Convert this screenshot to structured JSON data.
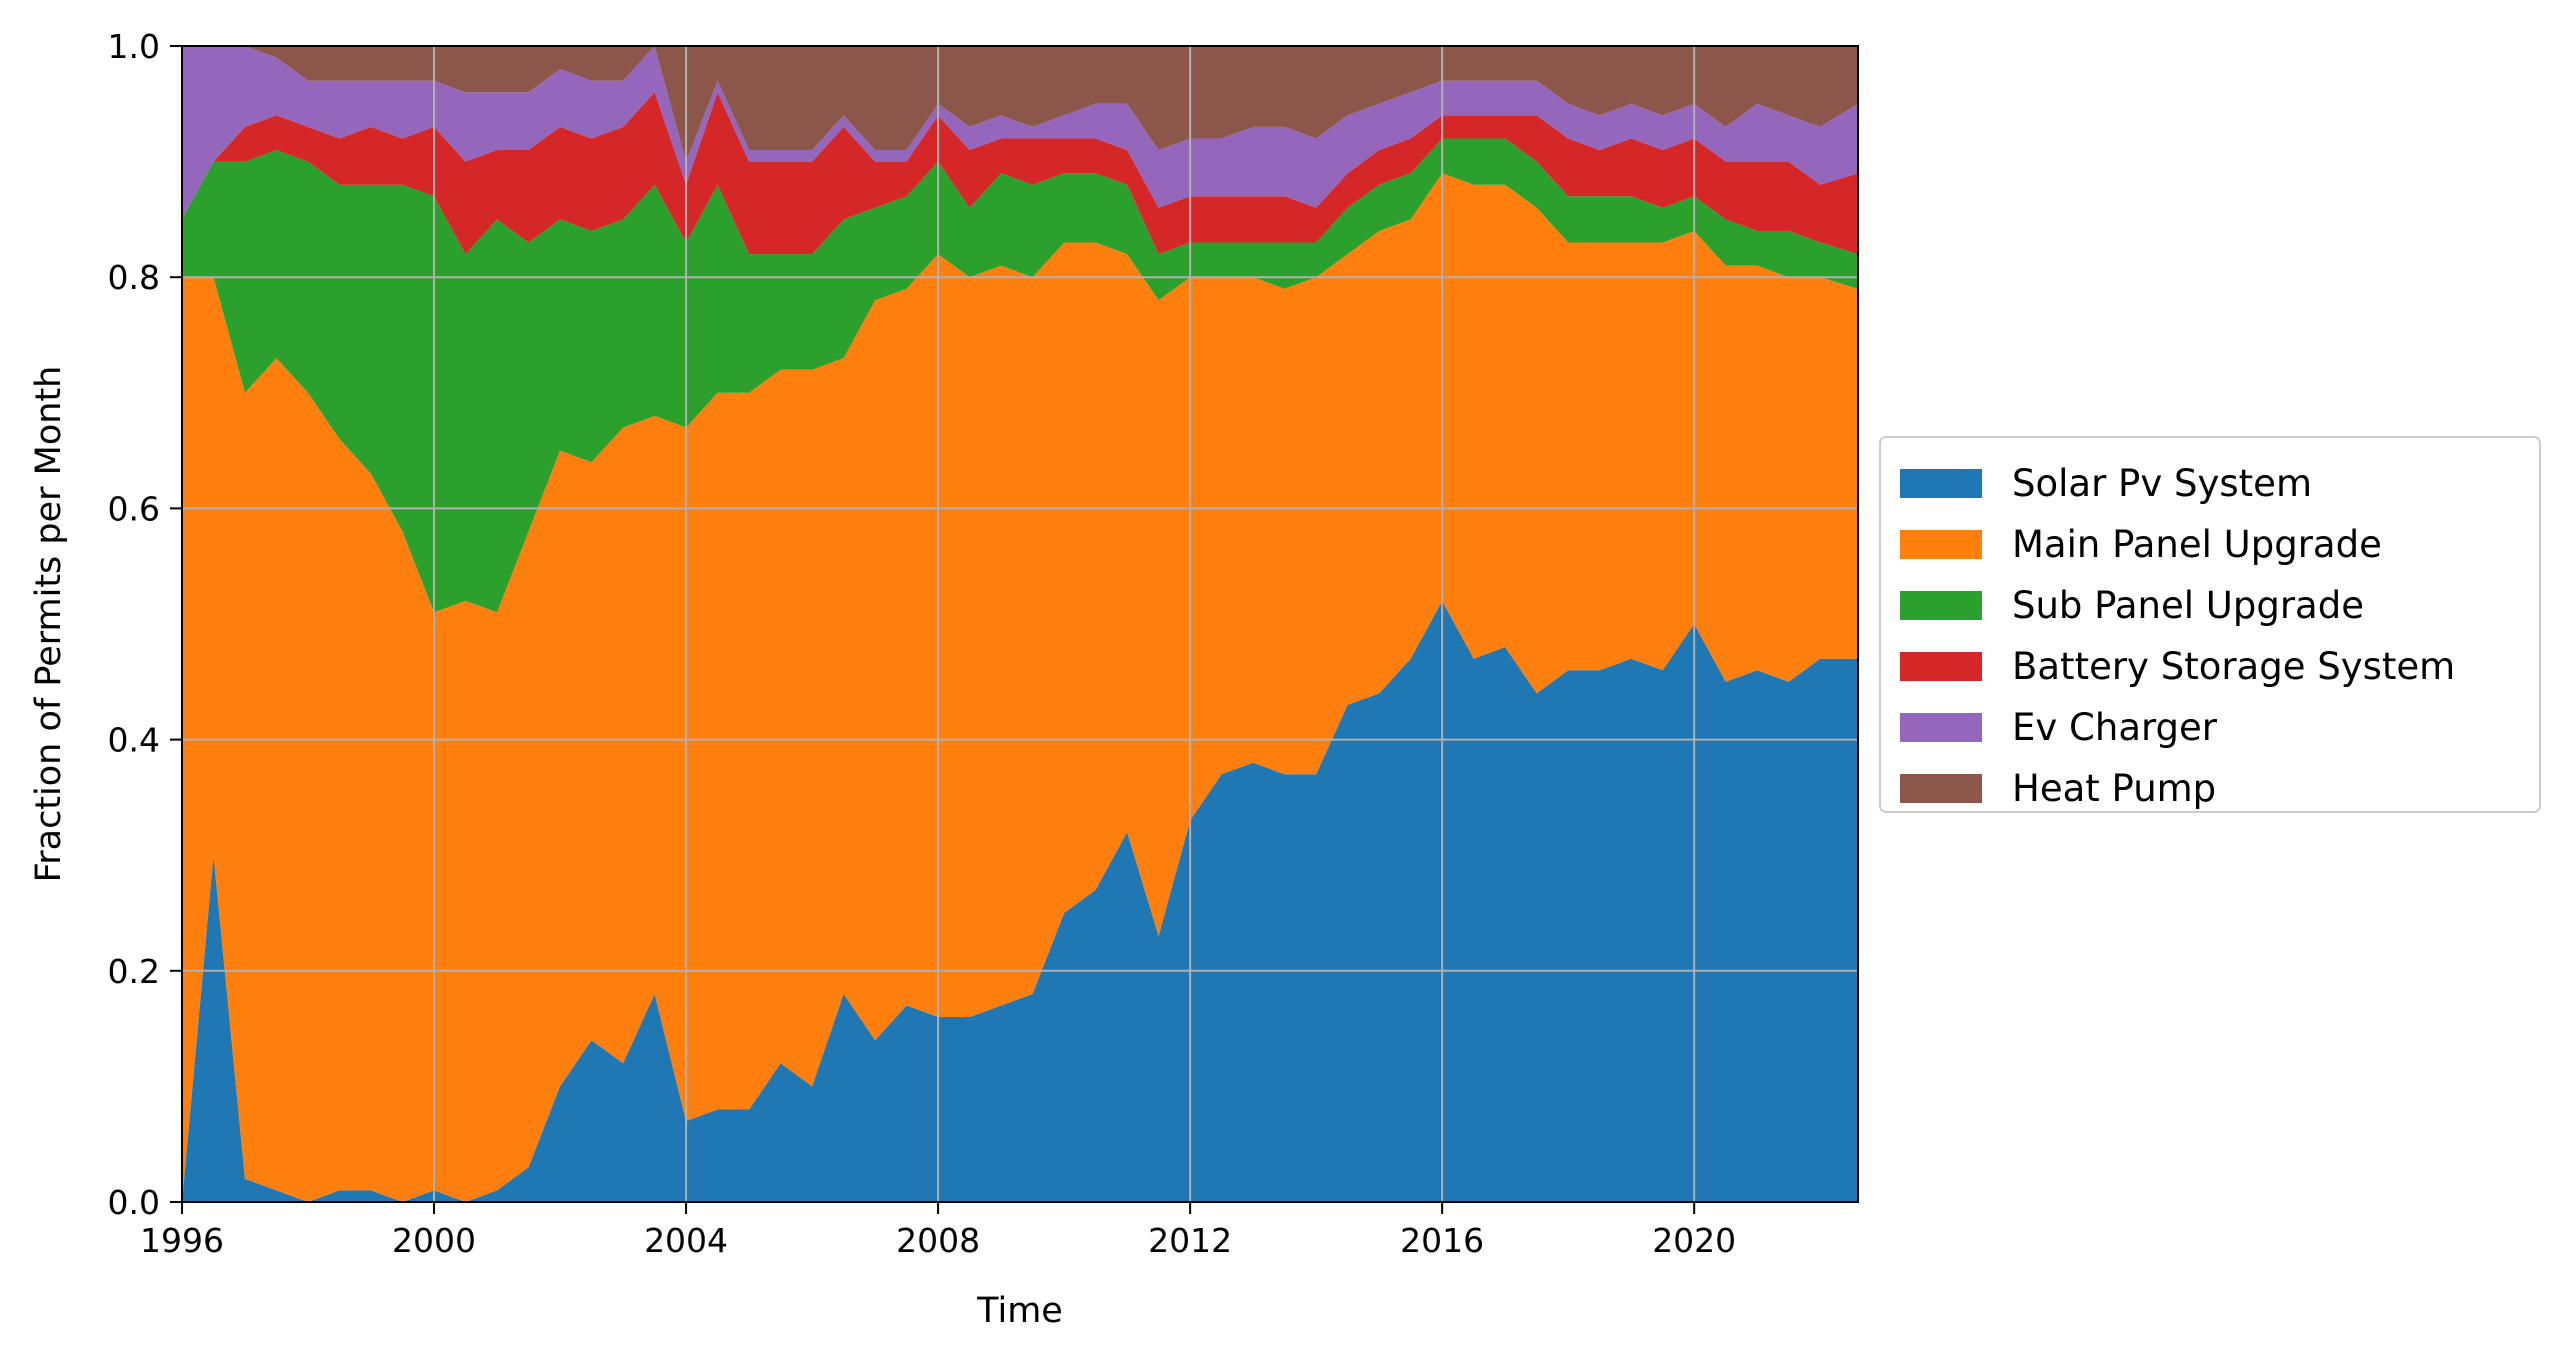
{
  "chart_data": {
    "type": "area",
    "stacked": true,
    "normalized": true,
    "xlabel": "Time",
    "ylabel": "Fraction of Permits per Month",
    "xlim": [
      1996,
      2022.6
    ],
    "ylim": [
      0.0,
      1.0
    ],
    "xticks": [
      1996,
      2000,
      2004,
      2008,
      2012,
      2016,
      2020
    ],
    "xtick_labels": [
      "1996",
      "2000",
      "2004",
      "2008",
      "2012",
      "2016",
      "2020"
    ],
    "yticks": [
      0.0,
      0.2,
      0.4,
      0.6,
      0.8,
      1.0
    ],
    "ytick_labels": [
      "0.0",
      "0.2",
      "0.4",
      "0.6",
      "0.8",
      "1.0"
    ],
    "grid": true,
    "legend_position": "right-outside",
    "x": [
      1996.0,
      1996.5,
      1997.0,
      1997.5,
      1998.0,
      1998.5,
      1999.0,
      1999.5,
      2000.0,
      2000.5,
      2001.0,
      2001.5,
      2002.0,
      2002.5,
      2003.0,
      2003.5,
      2004.0,
      2004.5,
      2005.0,
      2005.5,
      2006.0,
      2006.5,
      2007.0,
      2007.5,
      2008.0,
      2008.5,
      2009.0,
      2009.5,
      2010.0,
      2010.5,
      2011.0,
      2011.5,
      2012.0,
      2012.5,
      2013.0,
      2013.5,
      2014.0,
      2014.5,
      2015.0,
      2015.5,
      2016.0,
      2016.5,
      2017.0,
      2017.5,
      2018.0,
      2018.5,
      2019.0,
      2019.5,
      2020.0,
      2020.5,
      2021.0,
      2021.5,
      2022.0,
      2022.6
    ],
    "series": [
      {
        "name": "Solar Pv System",
        "color": "#1f77b4",
        "values": [
          0.0,
          0.3,
          0.02,
          0.01,
          0.0,
          0.01,
          0.01,
          0.0,
          0.01,
          0.0,
          0.01,
          0.03,
          0.1,
          0.14,
          0.12,
          0.18,
          0.07,
          0.08,
          0.08,
          0.12,
          0.1,
          0.18,
          0.14,
          0.17,
          0.16,
          0.16,
          0.17,
          0.18,
          0.25,
          0.27,
          0.32,
          0.23,
          0.33,
          0.37,
          0.38,
          0.37,
          0.37,
          0.43,
          0.44,
          0.47,
          0.52,
          0.47,
          0.48,
          0.44,
          0.46,
          0.46,
          0.47,
          0.46,
          0.5,
          0.45,
          0.46,
          0.45,
          0.47,
          0.47
        ]
      },
      {
        "name": "Main Panel Upgrade",
        "color": "#ff7f0e",
        "values": [
          0.8,
          0.5,
          0.68,
          0.72,
          0.7,
          0.65,
          0.62,
          0.58,
          0.5,
          0.52,
          0.5,
          0.55,
          0.55,
          0.5,
          0.55,
          0.5,
          0.6,
          0.62,
          0.62,
          0.6,
          0.62,
          0.55,
          0.64,
          0.62,
          0.66,
          0.64,
          0.64,
          0.62,
          0.58,
          0.56,
          0.5,
          0.55,
          0.47,
          0.43,
          0.42,
          0.42,
          0.43,
          0.39,
          0.4,
          0.38,
          0.37,
          0.41,
          0.4,
          0.42,
          0.37,
          0.37,
          0.36,
          0.37,
          0.34,
          0.36,
          0.35,
          0.35,
          0.33,
          0.32
        ]
      },
      {
        "name": "Sub Panel Upgrade",
        "color": "#2ca02c",
        "values": [
          0.05,
          0.1,
          0.2,
          0.18,
          0.2,
          0.22,
          0.25,
          0.3,
          0.36,
          0.3,
          0.34,
          0.25,
          0.2,
          0.2,
          0.18,
          0.2,
          0.16,
          0.18,
          0.12,
          0.1,
          0.1,
          0.12,
          0.08,
          0.08,
          0.08,
          0.06,
          0.08,
          0.08,
          0.06,
          0.06,
          0.06,
          0.04,
          0.03,
          0.03,
          0.03,
          0.04,
          0.03,
          0.04,
          0.04,
          0.04,
          0.03,
          0.04,
          0.04,
          0.04,
          0.04,
          0.04,
          0.04,
          0.03,
          0.03,
          0.04,
          0.03,
          0.04,
          0.03,
          0.03
        ]
      },
      {
        "name": "Battery Storage System",
        "color": "#d62728",
        "values": [
          0.0,
          0.0,
          0.03,
          0.03,
          0.03,
          0.04,
          0.05,
          0.04,
          0.06,
          0.08,
          0.06,
          0.08,
          0.08,
          0.08,
          0.08,
          0.08,
          0.05,
          0.08,
          0.08,
          0.08,
          0.08,
          0.08,
          0.04,
          0.03,
          0.04,
          0.05,
          0.03,
          0.04,
          0.03,
          0.03,
          0.03,
          0.04,
          0.04,
          0.04,
          0.04,
          0.04,
          0.03,
          0.03,
          0.03,
          0.03,
          0.02,
          0.02,
          0.02,
          0.04,
          0.05,
          0.04,
          0.05,
          0.05,
          0.05,
          0.05,
          0.06,
          0.06,
          0.05,
          0.07
        ]
      },
      {
        "name": "Ev Charger",
        "color": "#9467bd",
        "values": [
          0.15,
          0.1,
          0.07,
          0.05,
          0.04,
          0.05,
          0.04,
          0.05,
          0.04,
          0.06,
          0.05,
          0.05,
          0.05,
          0.05,
          0.04,
          0.04,
          0.02,
          0.01,
          0.01,
          0.01,
          0.01,
          0.01,
          0.01,
          0.01,
          0.01,
          0.02,
          0.02,
          0.01,
          0.02,
          0.03,
          0.04,
          0.05,
          0.05,
          0.05,
          0.06,
          0.06,
          0.06,
          0.05,
          0.04,
          0.04,
          0.03,
          0.03,
          0.03,
          0.03,
          0.03,
          0.03,
          0.03,
          0.03,
          0.03,
          0.03,
          0.05,
          0.04,
          0.05,
          0.06
        ]
      },
      {
        "name": "Heat Pump",
        "color": "#8c564b",
        "values": [
          0.0,
          0.0,
          0.0,
          0.01,
          0.03,
          0.03,
          0.03,
          0.03,
          0.03,
          0.04,
          0.04,
          0.04,
          0.02,
          0.03,
          0.03,
          0.0,
          0.1,
          0.03,
          0.09,
          0.09,
          0.09,
          0.06,
          0.09,
          0.09,
          0.05,
          0.07,
          0.06,
          0.07,
          0.06,
          0.05,
          0.05,
          0.09,
          0.08,
          0.08,
          0.07,
          0.07,
          0.08,
          0.06,
          0.05,
          0.04,
          0.03,
          0.03,
          0.03,
          0.03,
          0.05,
          0.06,
          0.05,
          0.06,
          0.05,
          0.07,
          0.05,
          0.06,
          0.07,
          0.05
        ]
      }
    ]
  }
}
